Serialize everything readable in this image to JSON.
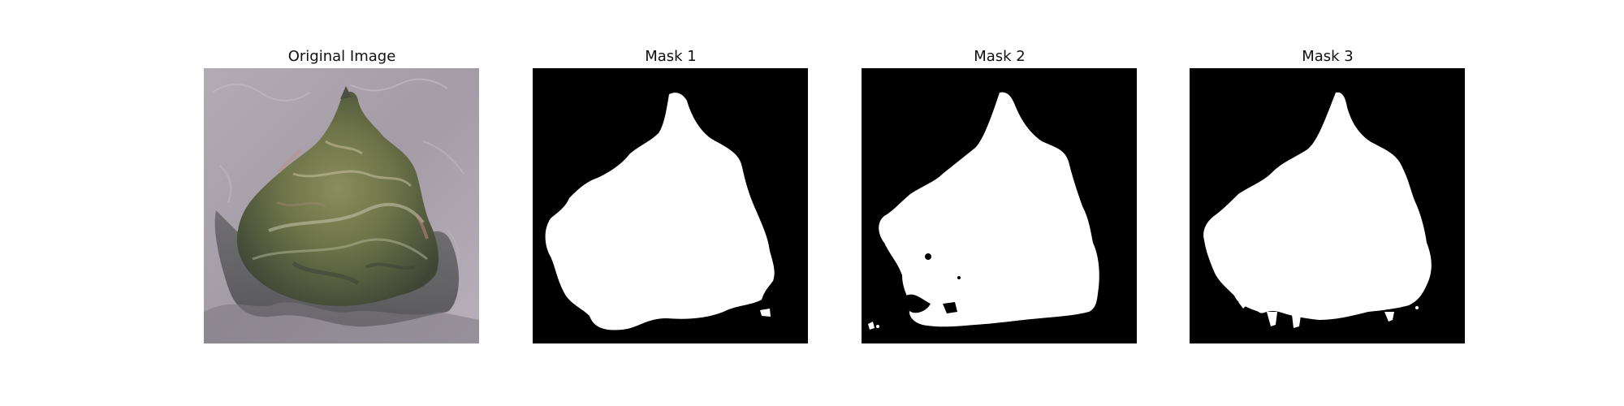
{
  "panels": [
    {
      "title": "Original Image",
      "kind": "photo"
    },
    {
      "title": "Mask 1",
      "kind": "mask"
    },
    {
      "title": "Mask 2",
      "kind": "mask"
    },
    {
      "title": "Mask 3",
      "kind": "mask"
    }
  ],
  "colors": {
    "mask_background": "#000000",
    "mask_foreground": "#ffffff",
    "photo_background": "#a49ca6",
    "leaf_green": "#6f7748"
  }
}
